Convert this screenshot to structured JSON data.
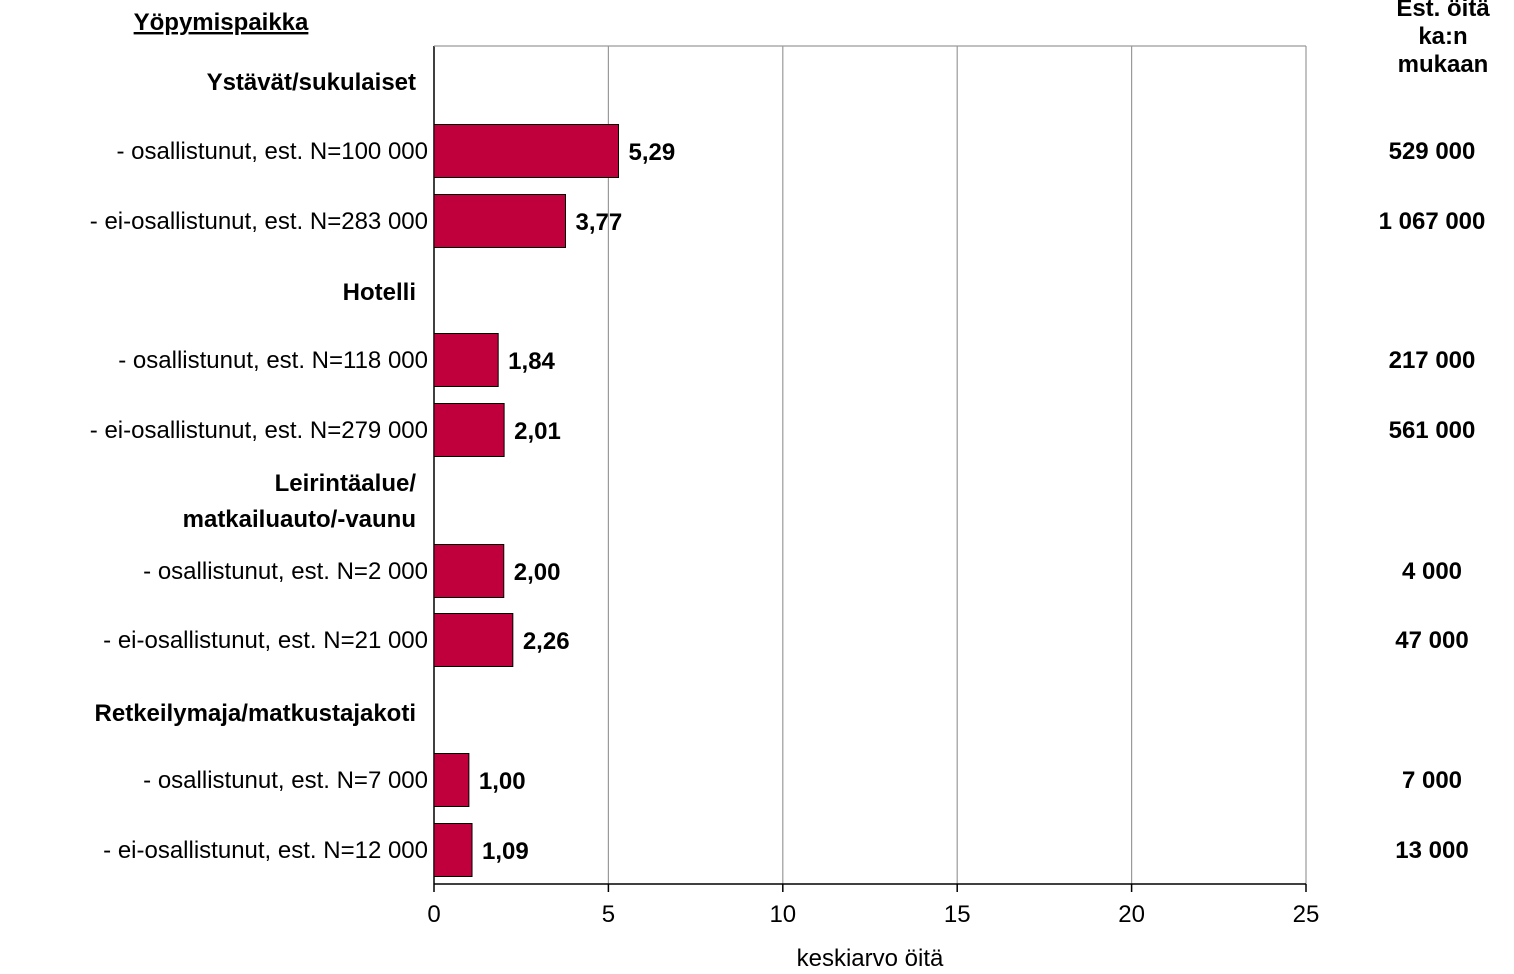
{
  "chart_data": {
    "type": "bar",
    "orientation": "horizontal",
    "header_left": "Yöpymispaikka",
    "header_right": [
      "Est. öitä",
      "ka:n",
      "mukaan"
    ],
    "xlabel": "keskiarvo öitä",
    "xlim": [
      0,
      25
    ],
    "xticks": [
      "0",
      "5",
      "10",
      "15",
      "20",
      "25"
    ],
    "grid": true,
    "bar_color": "#c0003c",
    "groups": [
      {
        "label": [
          "Ystävät/sukulaiset"
        ],
        "rows": [
          {
            "label": "- osallistunut, est. N=100 000",
            "value": 5.29,
            "value_label": "5,29",
            "right": "529 000"
          },
          {
            "label": "- ei-osallistunut, est. N=283 000",
            "value": 3.77,
            "value_label": "3,77",
            "right": "1 067 000"
          }
        ]
      },
      {
        "label": [
          "Hotelli"
        ],
        "rows": [
          {
            "label": "- osallistunut, est. N=118 000",
            "value": 1.84,
            "value_label": "1,84",
            "right": "217 000"
          },
          {
            "label": "- ei-osallistunut, est. N=279 000",
            "value": 2.01,
            "value_label": "2,01",
            "right": "561 000"
          }
        ]
      },
      {
        "label": [
          "Leirintäalue/",
          "matkailuauto/-vaunu"
        ],
        "rows": [
          {
            "label": "- osallistunut, est. N=2 000",
            "value": 2.0,
            "value_label": "2,00",
            "right": "4 000"
          },
          {
            "label": "- ei-osallistunut, est. N=21 000",
            "value": 2.26,
            "value_label": "2,26",
            "right": "47 000"
          }
        ]
      },
      {
        "label": [
          "Retkeilymaja/matkustajakoti"
        ],
        "rows": [
          {
            "label": "- osallistunut, est. N=7 000",
            "value": 1.0,
            "value_label": "1,00",
            "right": "7 000"
          },
          {
            "label": "- ei-osallistunut, est. N=12 000",
            "value": 1.09,
            "value_label": "1,09",
            "right": "13 000"
          }
        ]
      }
    ]
  }
}
